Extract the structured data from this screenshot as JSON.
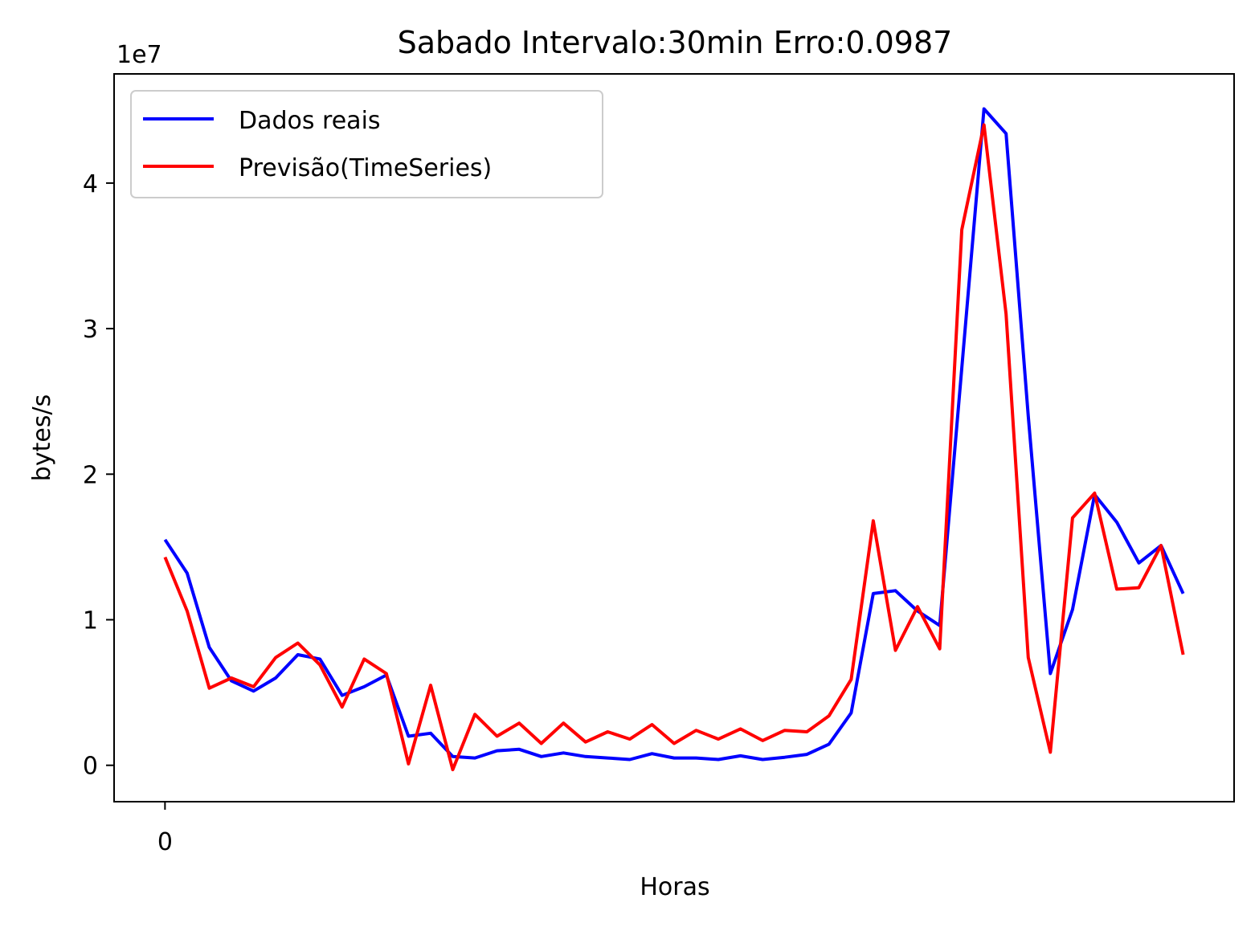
{
  "chart_data": {
    "type": "line",
    "title": "Sabado Intervalo:30min Erro:0.0987",
    "xlabel": "Horas",
    "ylabel": "bytes/s",
    "y_offset_label": "1e7",
    "y_scale": 10000000,
    "xlim": [
      -2.3,
      48.3
    ],
    "ylim": [
      -2500000,
      47500000
    ],
    "x_ticks": [
      0
    ],
    "x_tick_labels": [
      "0"
    ],
    "y_ticks": [
      0,
      10000000,
      20000000,
      30000000,
      40000000
    ],
    "y_tick_labels": [
      "0",
      "1",
      "2",
      "3",
      "4"
    ],
    "legend_position": "top-left",
    "grid": false,
    "x": [
      0,
      1,
      2,
      3,
      4,
      5,
      6,
      7,
      8,
      9,
      10,
      11,
      12,
      13,
      14,
      15,
      16,
      17,
      18,
      19,
      20,
      21,
      22,
      23,
      24,
      25,
      26,
      27,
      28,
      29,
      30,
      31,
      32,
      33,
      34,
      35,
      36,
      37,
      38,
      39,
      40,
      41,
      42,
      43,
      44,
      45,
      46
    ],
    "series": [
      {
        "name": "Dados reais",
        "color": "#0000ff",
        "values": [
          15500000,
          13200000,
          8100000,
          5800000,
          5100000,
          6000000,
          7600000,
          7300000,
          4800000,
          5400000,
          6200000,
          2000000,
          2200000,
          600000,
          500000,
          1000000,
          1100000,
          600000,
          850000,
          600000,
          500000,
          400000,
          800000,
          500000,
          500000,
          400000,
          650000,
          400000,
          550000,
          750000,
          1450000,
          3600000,
          11800000,
          12000000,
          10600000,
          9600000,
          27300000,
          45100000,
          43400000,
          24000000,
          6300000,
          10700000,
          18600000,
          16700000,
          13900000,
          15100000,
          11800000
        ]
      },
      {
        "name": "Previsão(TimeSeries)",
        "color": "#ff0000",
        "values": [
          14300000,
          10600000,
          5300000,
          6000000,
          5400000,
          7400000,
          8400000,
          6900000,
          4000000,
          7300000,
          6300000,
          100000,
          5500000,
          -300000,
          3500000,
          2000000,
          2900000,
          1500000,
          2900000,
          1600000,
          2300000,
          1800000,
          2800000,
          1500000,
          2400000,
          1800000,
          2500000,
          1700000,
          2400000,
          2300000,
          3400000,
          5900000,
          16800000,
          7900000,
          10900000,
          8000000,
          36800000,
          44000000,
          31000000,
          7400000,
          900000,
          17000000,
          18700000,
          12100000,
          12200000,
          15100000,
          7600000
        ]
      }
    ]
  }
}
